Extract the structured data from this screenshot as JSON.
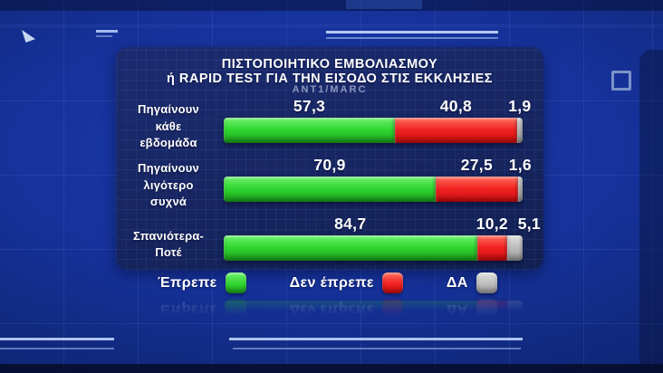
{
  "header": {
    "title_line1": "ΠΙΣΤΟΠΟΙΗΤΙΚΟ ΕΜΒΟΛΙΑΣΜΟΥ",
    "title_line2": "ή RAPID TEST ΓΙΑ ΤΗΝ ΕΙΣΟΔΟ ΣΤΙΣ ΕΚΚΛΗΣΙΕΣ",
    "source": "ANT1/MARC"
  },
  "chart_data": {
    "type": "bar",
    "orientation": "horizontal",
    "stacked": true,
    "xlim": [
      0,
      100
    ],
    "grid": false,
    "legend_position": "bottom",
    "categories": [
      "Πηγαίνουν κάθε εβδομάδα",
      "Πηγαίνουν λιγότερο συχνά",
      "Σπανιότερα-Ποτέ"
    ],
    "category_label_lines": [
      [
        "Πηγαίνουν",
        "κάθε",
        "εβδομάδα"
      ],
      [
        "Πηγαίνουν",
        "λιγότερο",
        "συχνά"
      ],
      [
        "Σπανιότερα-",
        "Ποτέ"
      ]
    ],
    "series": [
      {
        "key": "should",
        "name": "Έπρεπε",
        "values": [
          57.3,
          70.9,
          84.7
        ],
        "color": "#2fd52f",
        "color_top": "#6ef26e",
        "color_bottom": "#1da51d"
      },
      {
        "key": "should-not",
        "name": "Δεν έπρεπε",
        "values": [
          40.8,
          27.5,
          10.2
        ],
        "color": "#f22222",
        "color_top": "#ff6e5f",
        "color_bottom": "#ce0d0d"
      },
      {
        "key": "no-answer",
        "name": "ΔΑ",
        "values": [
          1.9,
          1.6,
          5.1
        ],
        "color": "#bdbdbd",
        "color_top": "#e0e0e0",
        "color_bottom": "#999999"
      }
    ],
    "value_labels": [
      [
        "57,3",
        "40,8",
        "1,9"
      ],
      [
        "70,9",
        "27,5",
        "1,6"
      ],
      [
        "84,7",
        "10,2",
        "5,1"
      ]
    ]
  },
  "legend": {
    "items": [
      {
        "key": "should",
        "label": "Έπρεπε",
        "color": "#2fd52f",
        "color_top": "#6ef26e",
        "color_bottom": "#1da51d"
      },
      {
        "key": "should-not",
        "label": "Δεν έπρεπε",
        "color": "#f22222",
        "color_top": "#ff6e5f",
        "color_bottom": "#ce0d0d"
      },
      {
        "key": "no-answer",
        "label": "ΔΑ",
        "color": "#bdbdbd",
        "color_top": "#e0e0e0",
        "color_bottom": "#999999"
      }
    ]
  },
  "colors": {
    "background": "#16329c",
    "panel": "#172560",
    "text": "#ffffff",
    "source_text": "#8d97c0"
  },
  "decor_icons": [
    "triangle-marker-icon",
    "square-outline-icon"
  ]
}
